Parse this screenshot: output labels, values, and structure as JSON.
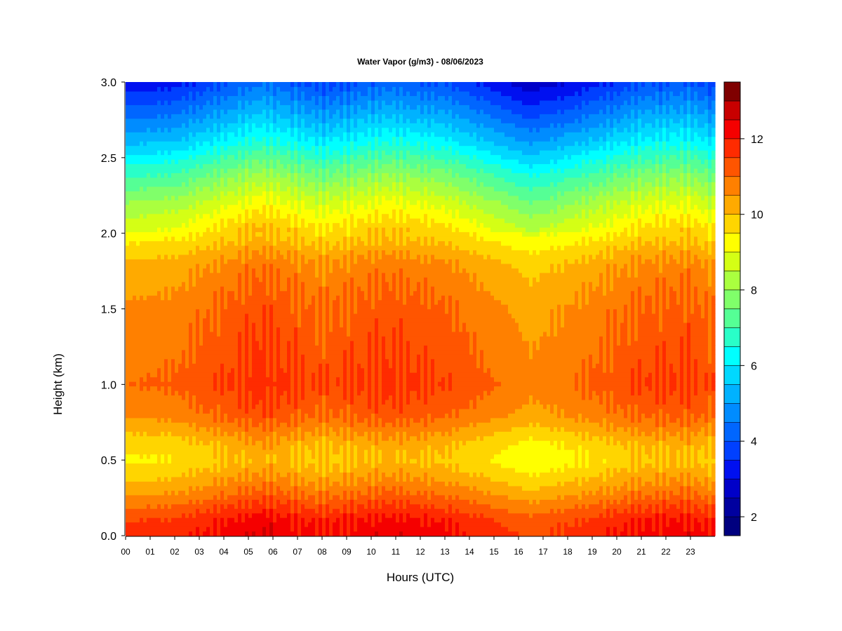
{
  "chart_data": {
    "type": "heatmap",
    "title": "Water Vapor (g/m3) - 08/06/2023",
    "xlabel": "Hours (UTC)",
    "ylabel": "Height (km)",
    "xlim": [
      0,
      24
    ],
    "ylim": [
      0,
      3.0
    ],
    "x_ticks": [
      "00",
      "01",
      "02",
      "03",
      "04",
      "05",
      "06",
      "07",
      "08",
      "09",
      "10",
      "11",
      "12",
      "13",
      "14",
      "15",
      "16",
      "17",
      "18",
      "19",
      "20",
      "21",
      "22",
      "23"
    ],
    "y_ticks": [
      "0.0",
      "0.5",
      "1.0",
      "1.5",
      "2.0",
      "2.5",
      "3.0"
    ],
    "colorbar": {
      "min": 1.5,
      "max": 13.5,
      "levels": [
        1.5,
        2.0,
        2.5,
        3.0,
        3.5,
        4.0,
        4.5,
        5.0,
        5.5,
        6.0,
        6.5,
        7.0,
        7.5,
        8.0,
        8.5,
        9.0,
        9.5,
        10.0,
        10.5,
        11.0,
        11.5,
        12.0,
        12.5,
        13.0,
        13.5
      ],
      "tick_labels": [
        "2",
        "4",
        "6",
        "8",
        "10",
        "12"
      ],
      "colors": [
        "#00007f",
        "#00009f",
        "#0000c8",
        "#0010f0",
        "#0040ff",
        "#0066ff",
        "#008cff",
        "#00b2ff",
        "#00d8ff",
        "#00ffff",
        "#29ffc8",
        "#55ff95",
        "#80ff6a",
        "#aaff3f",
        "#d4ff15",
        "#ffff00",
        "#ffd500",
        "#ffaa00",
        "#ff8000",
        "#ff5500",
        "#ff2b00",
        "#f50000",
        "#c80000",
        "#7f0000"
      ]
    },
    "vertical_profile": {
      "height_km": [
        0.0,
        0.1,
        0.2,
        0.3,
        0.4,
        0.5,
        0.6,
        0.8,
        1.0,
        1.2,
        1.5,
        1.8,
        2.0,
        2.2,
        2.4,
        2.6,
        2.8,
        3.0
      ],
      "value_gm3": [
        12.0,
        11.8,
        11.2,
        10.6,
        10.1,
        9.7,
        9.9,
        10.9,
        11.3,
        11.1,
        10.9,
        10.4,
        9.5,
        8.5,
        7.3,
        5.9,
        4.7,
        3.6
      ]
    },
    "time_variation": {
      "hours": [
        0,
        2,
        4,
        5.5,
        8,
        10.7,
        13,
        16.5,
        17.8,
        20,
        21,
        23,
        24
      ],
      "offset_gm3": [
        -0.3,
        -0.2,
        0.2,
        0.5,
        0.1,
        0.4,
        0.2,
        -0.6,
        -0.4,
        0.0,
        0.2,
        0.3,
        0.0
      ]
    },
    "grid": false,
    "legend": "colorbar right"
  }
}
